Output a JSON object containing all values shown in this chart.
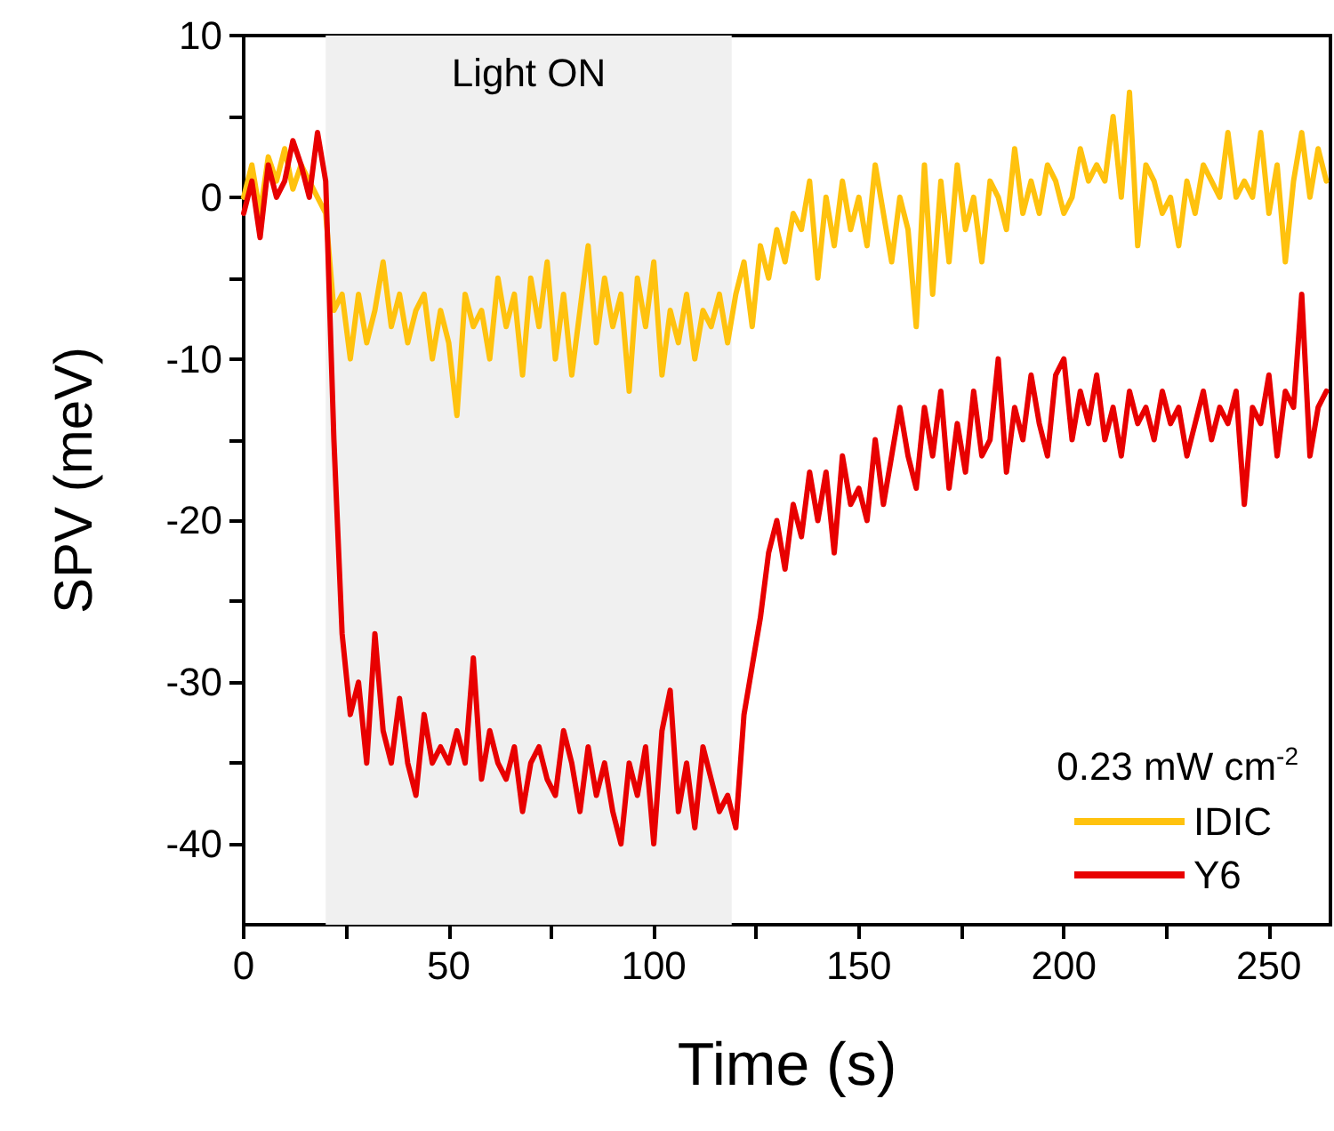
{
  "chart_data": {
    "type": "line",
    "xlabel": "Time (s)",
    "ylabel": "SPV (meV)",
    "legend_title": "0.23 mW cm$^{-2}$",
    "x": [
      0,
      2,
      4,
      6,
      8,
      10,
      12,
      14,
      16,
      18,
      20,
      22,
      24,
      26,
      28,
      30,
      32,
      34,
      36,
      38,
      40,
      42,
      44,
      46,
      48,
      50,
      52,
      54,
      56,
      58,
      60,
      62,
      64,
      66,
      68,
      70,
      72,
      74,
      76,
      78,
      80,
      82,
      84,
      86,
      88,
      90,
      92,
      94,
      96,
      98,
      100,
      102,
      104,
      106,
      108,
      110,
      112,
      114,
      116,
      118,
      120,
      122,
      124,
      126,
      128,
      130,
      132,
      134,
      136,
      138,
      140,
      142,
      144,
      146,
      148,
      150,
      152,
      154,
      156,
      158,
      160,
      162,
      164,
      166,
      168,
      170,
      172,
      174,
      176,
      178,
      180,
      182,
      184,
      186,
      188,
      190,
      192,
      194,
      196,
      198,
      200,
      202,
      204,
      206,
      208,
      210,
      212,
      214,
      216,
      218,
      220,
      222,
      224,
      226,
      228,
      230,
      232,
      234,
      236,
      238,
      240,
      242,
      244,
      246,
      248,
      250,
      252,
      254,
      256,
      258,
      260,
      262,
      264
    ],
    "series": [
      {
        "name": "IDIC",
        "color": "#ffc20e",
        "values": [
          0,
          2,
          -1,
          2.5,
          1,
          3,
          0.5,
          2,
          1,
          0,
          -1,
          -7,
          -6,
          -10,
          -6,
          -9,
          -7,
          -4,
          -8,
          -6,
          -9,
          -7,
          -6,
          -10,
          -7,
          -9,
          -13.5,
          -6,
          -8,
          -7,
          -10,
          -5,
          -8,
          -6,
          -11,
          -5,
          -8,
          -4,
          -10,
          -6,
          -11,
          -7,
          -3,
          -9,
          -5,
          -8,
          -6,
          -12,
          -5,
          -8,
          -4,
          -11,
          -7,
          -9,
          -6,
          -10,
          -7,
          -8,
          -6,
          -9,
          -6,
          -4,
          -8,
          -3,
          -5,
          -2,
          -4,
          -1,
          -2,
          1,
          -5,
          0,
          -3,
          1,
          -2,
          0,
          -3,
          2,
          -1,
          -4,
          0,
          -2,
          -8,
          2,
          -6,
          1,
          -4,
          2,
          -2,
          0,
          -4,
          1,
          0,
          -2,
          3,
          -1,
          1,
          -1,
          2,
          1,
          -1,
          0,
          3,
          1,
          2,
          1,
          5,
          0,
          6.5,
          -3,
          2,
          1,
          -1,
          0,
          -3,
          1,
          -1,
          2,
          1,
          0,
          4,
          0,
          1,
          0,
          4,
          -1,
          2,
          -4,
          1,
          4,
          0,
          3,
          1
        ]
      },
      {
        "name": "Y6",
        "color": "#e80000",
        "values": [
          -1,
          1,
          -2.5,
          2,
          0,
          1,
          3.5,
          2,
          0,
          4,
          1,
          -15,
          -27,
          -32,
          -30,
          -35,
          -27,
          -33,
          -35,
          -31,
          -35,
          -37,
          -32,
          -35,
          -34,
          -35,
          -33,
          -35,
          -28.5,
          -36,
          -33,
          -35,
          -36,
          -34,
          -38,
          -35,
          -34,
          -36,
          -37,
          -33,
          -35,
          -38,
          -34,
          -37,
          -35,
          -38,
          -40,
          -35,
          -37,
          -34,
          -40,
          -33,
          -30.5,
          -38,
          -35,
          -39,
          -34,
          -36,
          -38,
          -37,
          -39,
          -32,
          -29,
          -26,
          -22,
          -20,
          -23,
          -19,
          -21,
          -17,
          -20,
          -17,
          -22,
          -16,
          -19,
          -18,
          -20,
          -15,
          -19,
          -16,
          -13,
          -16,
          -18,
          -13,
          -16,
          -12,
          -18,
          -14,
          -17,
          -12,
          -16,
          -15,
          -10,
          -17,
          -13,
          -15,
          -11,
          -14,
          -16,
          -11,
          -10,
          -15,
          -12,
          -14,
          -11,
          -15,
          -13,
          -16,
          -12,
          -14,
          -13,
          -15,
          -12,
          -14,
          -13,
          -16,
          -14,
          -12,
          -15,
          -13,
          -14,
          -12,
          -19,
          -13,
          -14,
          -11,
          -16,
          -12,
          -13,
          -6,
          -16,
          -13,
          -12
        ]
      }
    ],
    "xlim": [
      0,
      265
    ],
    "xticks": [
      0,
      {
        "value": 25,
        "label": null
      },
      50,
      {
        "value": 75,
        "label": null
      },
      100,
      {
        "value": 125,
        "label": null
      },
      150,
      {
        "value": 175,
        "label": null
      },
      200,
      {
        "value": 225,
        "label": null
      },
      250
    ],
    "ylim": [
      -45,
      10
    ],
    "yticks": [
      -40,
      {
        "value": -35,
        "label": null
      },
      -30,
      {
        "value": -25,
        "label": null
      },
      -20,
      {
        "value": -15,
        "label": null
      },
      -10,
      {
        "value": -5,
        "label": null
      },
      0,
      {
        "value": 5,
        "label": null
      },
      10
    ],
    "bands": [
      {
        "axis": "x",
        "from": 20,
        "to": 119,
        "label": "Light ON",
        "color": "#f0f0f0"
      }
    ],
    "grid": false,
    "legend": "bottom right",
    "marker": "none",
    "line_style": "solid"
  }
}
